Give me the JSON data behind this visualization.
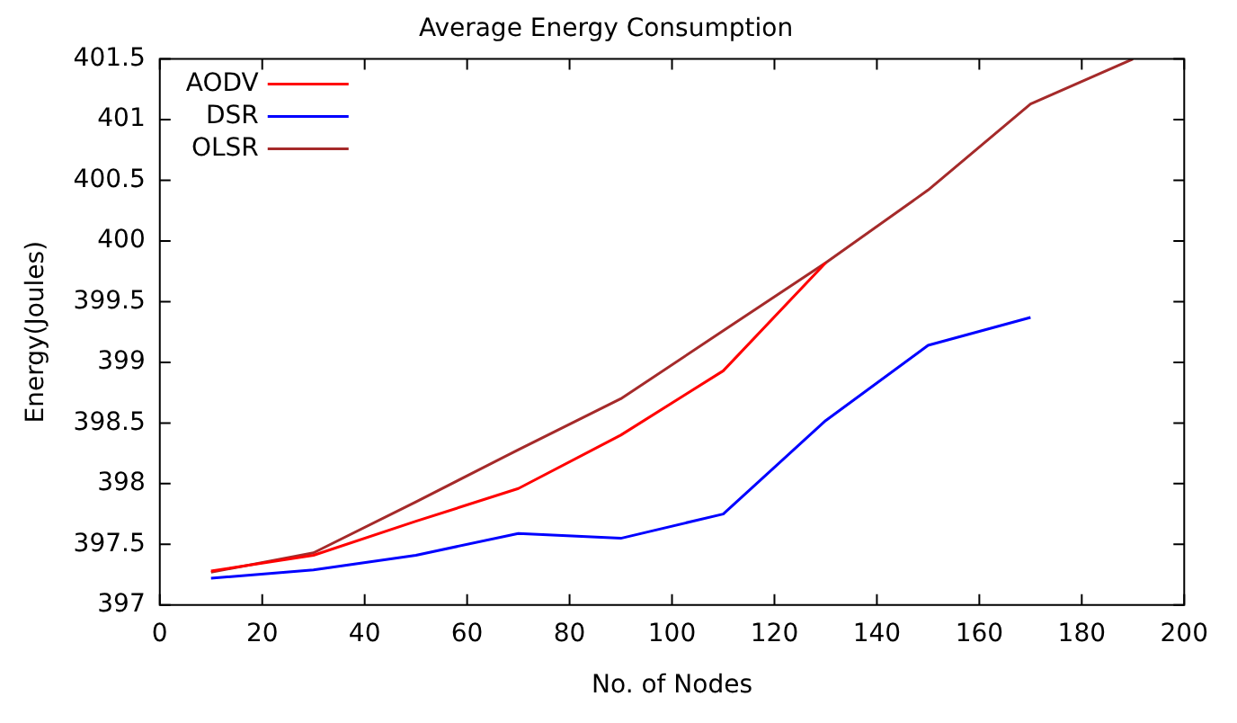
{
  "chart_data": {
    "type": "line",
    "title": "Average Energy Consumption",
    "xlabel": "No. of Nodes",
    "ylabel": "Energy(Joules)",
    "xlim": [
      0,
      200
    ],
    "xticks": [
      0,
      20,
      40,
      60,
      80,
      100,
      120,
      140,
      160,
      180,
      200
    ],
    "ylim": [
      397,
      401.5
    ],
    "yticks": [
      397,
      397.5,
      398,
      398.5,
      399,
      399.5,
      400,
      400.5,
      401,
      401.5
    ],
    "grid": false,
    "legend": "top left",
    "marker": "none",
    "line_style": "solid",
    "series": [
      {
        "name": "AODV",
        "color": "#ff0000",
        "x": [
          10,
          30,
          50,
          70,
          90,
          110,
          130
        ],
        "values": [
          397.28,
          397.41,
          397.69,
          397.96,
          398.4,
          398.93,
          399.82
        ]
      },
      {
        "name": "DSR",
        "color": "#0000ff",
        "x": [
          10,
          30,
          50,
          70,
          90,
          110,
          130,
          150,
          170
        ],
        "values": [
          397.22,
          397.29,
          397.41,
          397.59,
          397.55,
          397.75,
          398.52,
          399.14,
          399.37
        ]
      },
      {
        "name": "OLSR",
        "color": "#a52a2a",
        "x": [
          10,
          30,
          50,
          70,
          90,
          110,
          130,
          150,
          170,
          190
        ],
        "values": [
          397.27,
          397.43,
          397.85,
          398.28,
          398.7,
          399.26,
          399.82,
          400.42,
          401.13,
          401.5
        ]
      }
    ]
  }
}
